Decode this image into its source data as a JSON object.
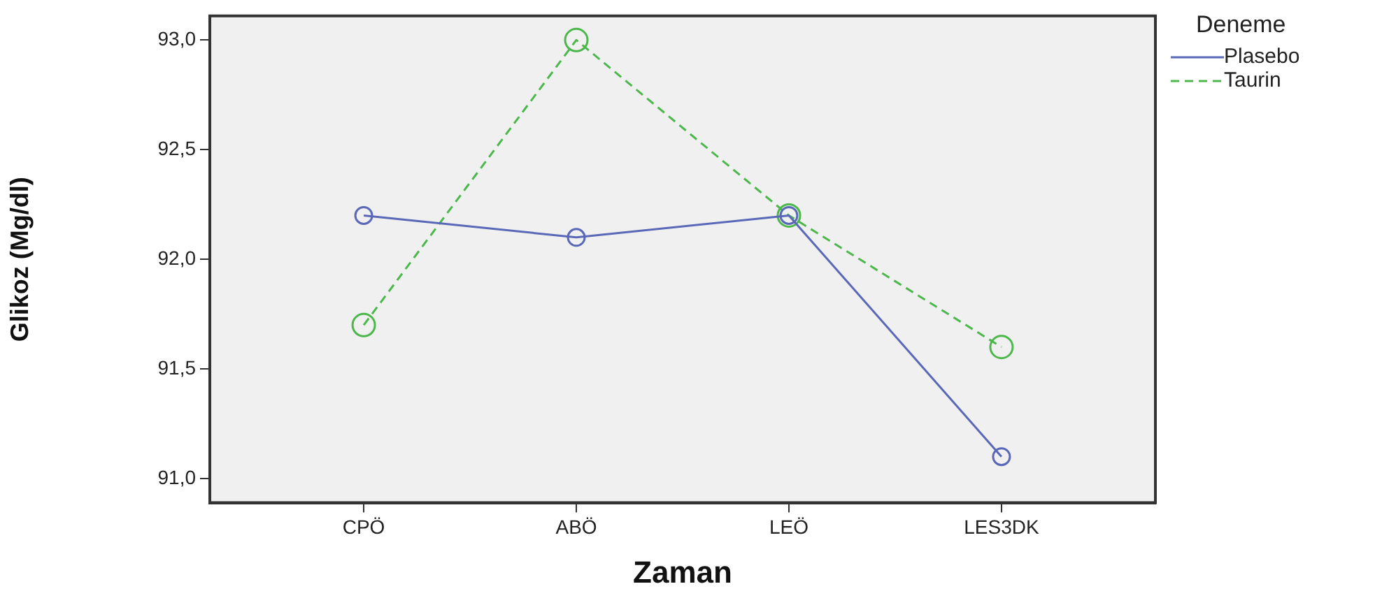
{
  "chart_data": {
    "type": "line",
    "xlabel": "Zaman",
    "ylabel": "Glikoz (Mg/dl)",
    "legend_title": "Deneme",
    "categories": [
      "CPÖ",
      "ABÖ",
      "LEÖ",
      "LES3DK"
    ],
    "series": [
      {
        "name": "Plasebo",
        "color": "#5a68b8",
        "values": [
          92.2,
          92.1,
          92.2,
          91.1
        ],
        "line_style": "solid"
      },
      {
        "name": "Taurin",
        "color": "#4cb84c",
        "values": [
          91.7,
          93.0,
          92.2,
          91.6
        ],
        "line_style": "dashed"
      }
    ],
    "ylim": [
      90.89,
      93.11
    ],
    "yticks": [
      {
        "value": 91,
        "label": "91,0"
      },
      {
        "value": 91.5,
        "label": "91,5"
      },
      {
        "value": 92,
        "label": "92,0"
      },
      {
        "value": 92.5,
        "label": "92,5"
      },
      {
        "value": 93,
        "label": "93,0"
      }
    ],
    "grid": false,
    "legend": "top right",
    "marker": "circle"
  }
}
